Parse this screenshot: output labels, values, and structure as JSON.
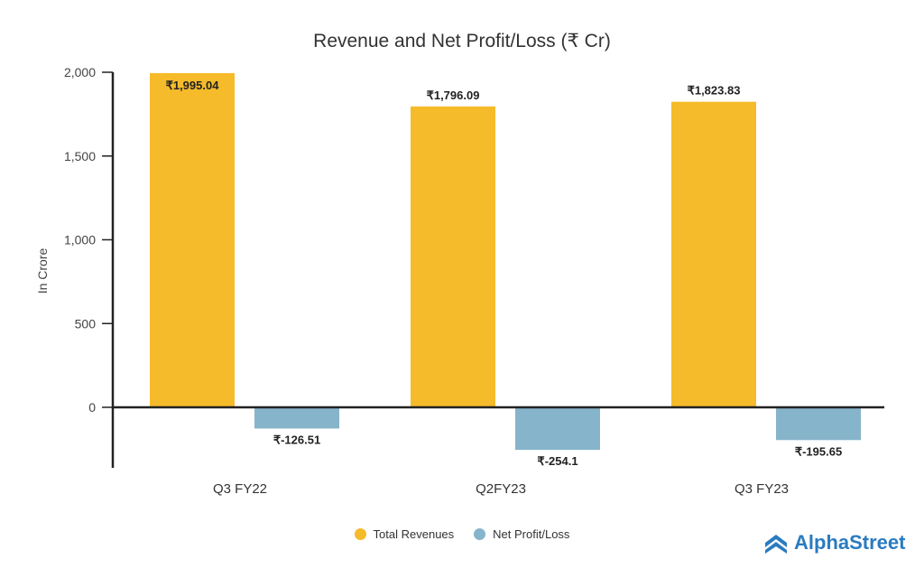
{
  "chart_data": {
    "type": "bar",
    "title": "Revenue and Net Profit/Loss (₹ Cr)",
    "xlabel": "",
    "ylabel": "In Crore",
    "ylim": [
      -360,
      2000
    ],
    "yticks": [
      0,
      500,
      1000,
      1500,
      2000
    ],
    "ytick_labels": [
      "0",
      "500",
      "1,000",
      "1,500",
      "2,000"
    ],
    "grid": false,
    "categories": [
      "Q3 FY22",
      "Q2FY23",
      "Q3 FY23"
    ],
    "series": [
      {
        "name": "Total Revenues",
        "color": "#f6bb2a",
        "values": [
          1995.04,
          1796.09,
          1823.83
        ],
        "labels": [
          "₹1,995.04",
          "₹1,796.09",
          "₹1,823.83"
        ]
      },
      {
        "name": "Net Profit/Loss",
        "color": "#86b4cb",
        "values": [
          -126.51,
          -254.1,
          -195.65
        ],
        "labels": [
          "₹-126.51",
          "₹-254.1",
          "₹-195.65"
        ]
      }
    ],
    "legend_position": "bottom-center"
  },
  "brand": {
    "name": "AlphaStreet",
    "color": "#2a7bc0"
  }
}
